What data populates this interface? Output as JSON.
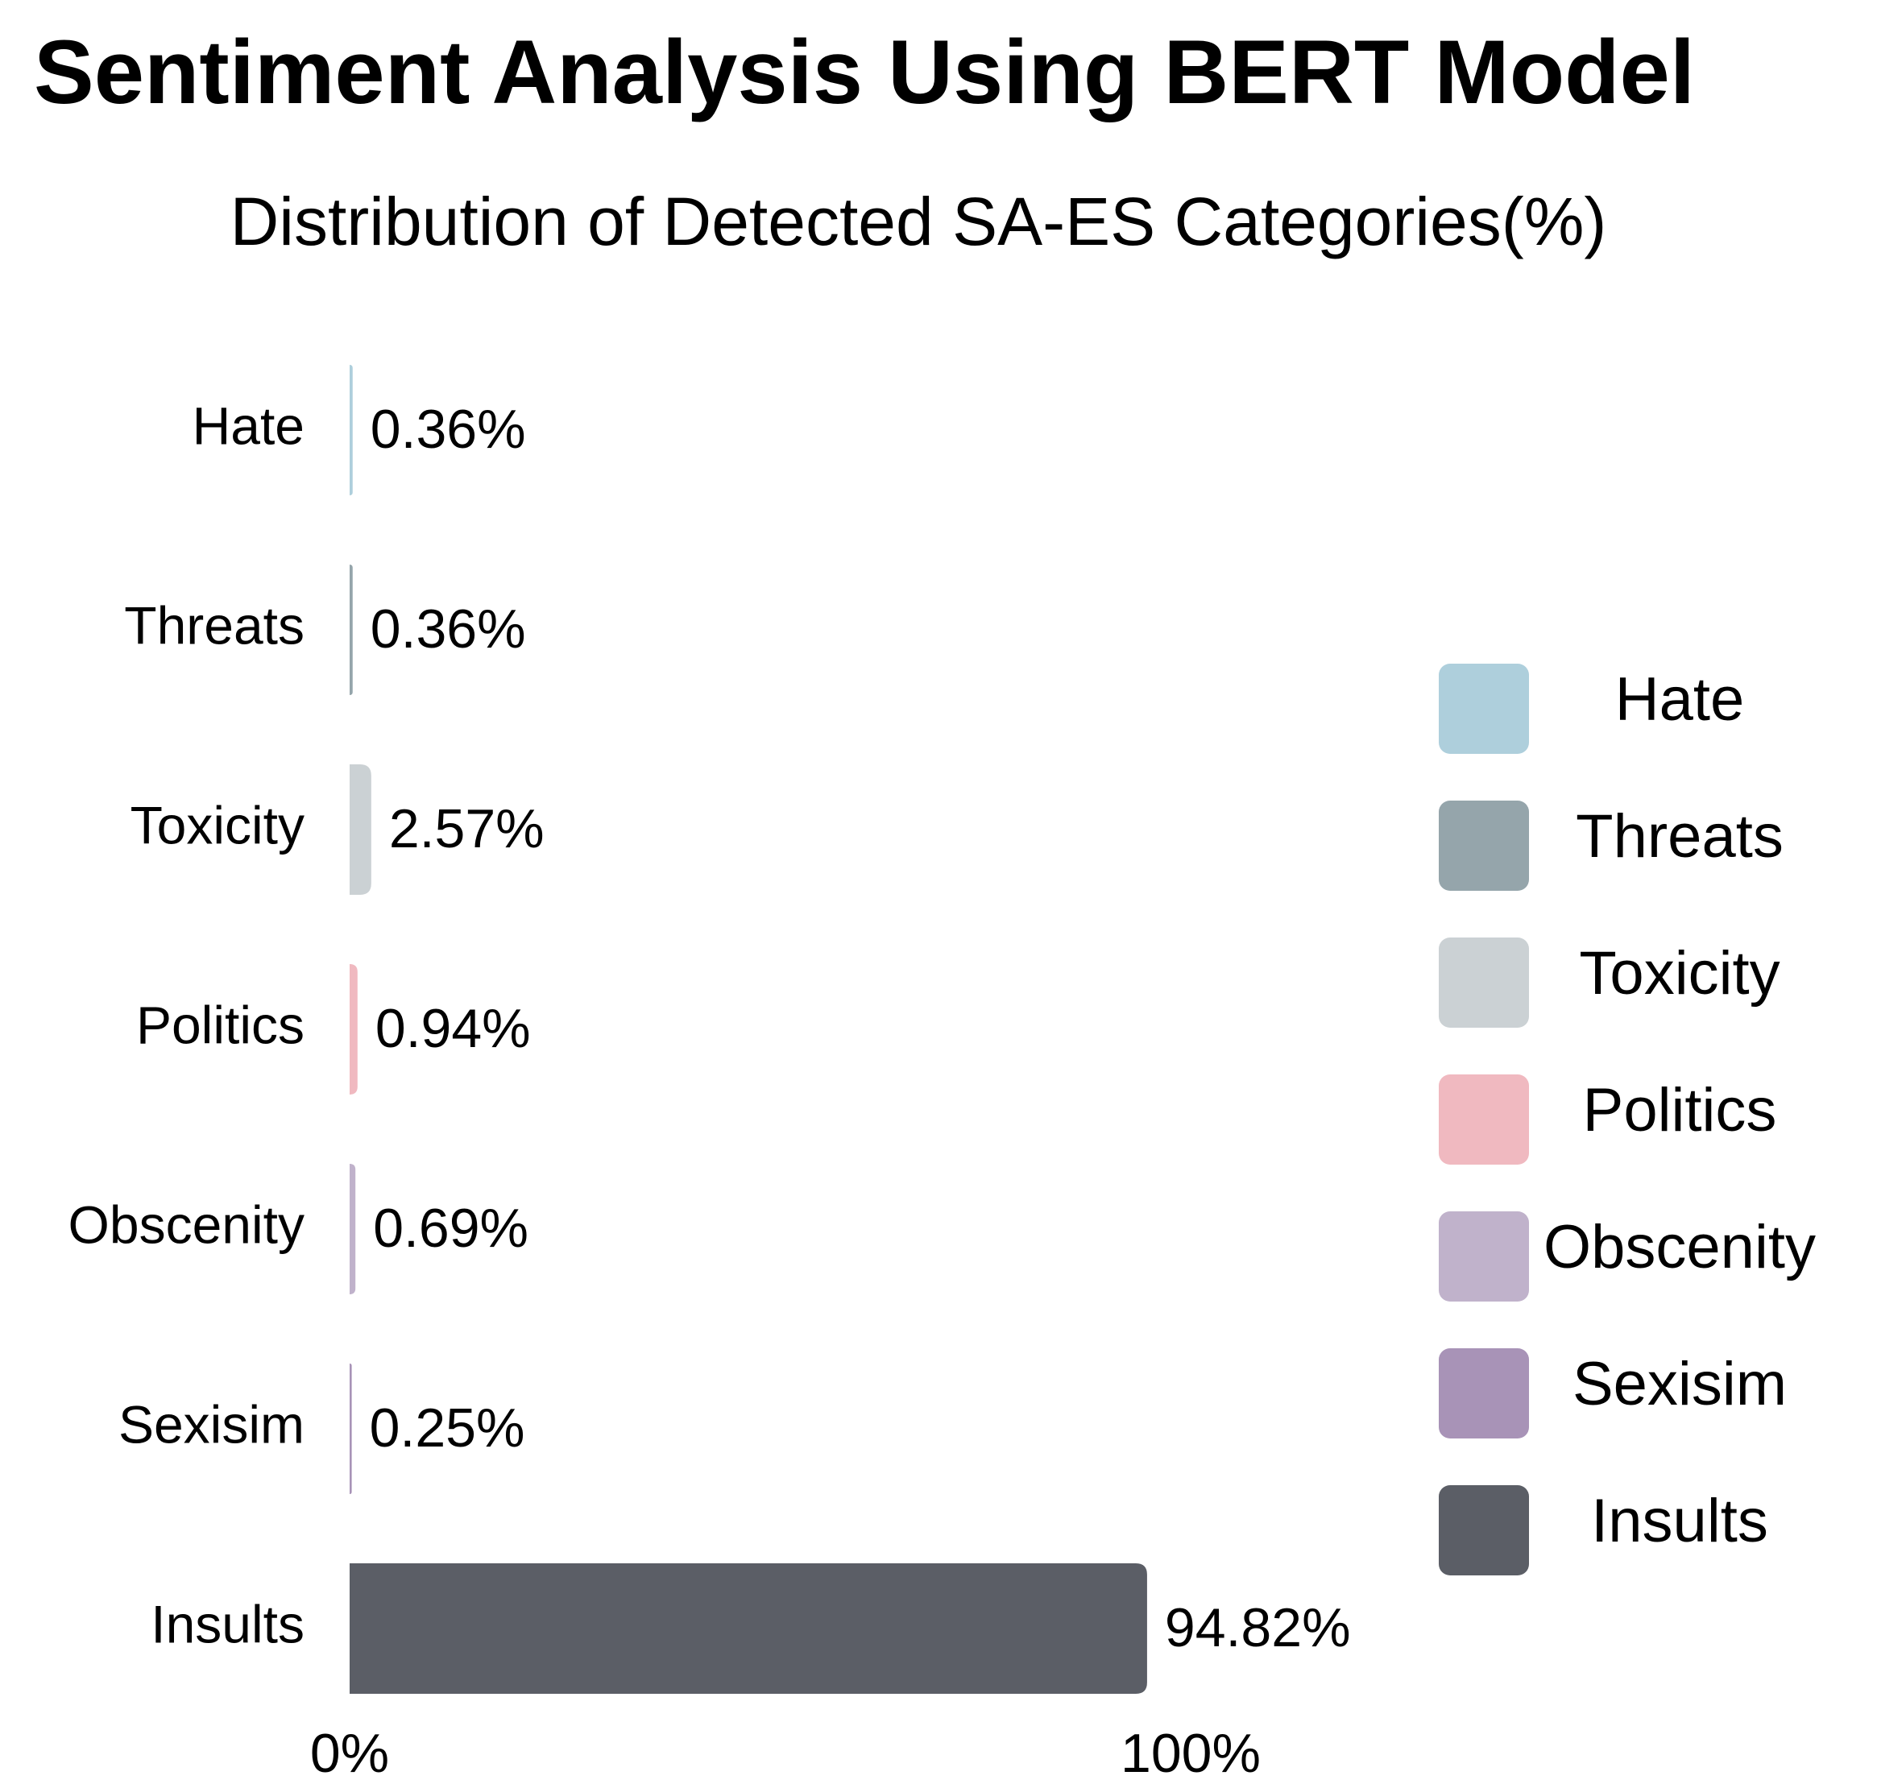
{
  "chart_data": {
    "type": "bar",
    "orientation": "horizontal",
    "title": "Sentiment Analysis Using BERT Model",
    "subtitle": "Distribution of Detected SA-ES Categories(%)",
    "categories": [
      "Hate",
      "Threats",
      "Toxicity",
      "Politics",
      "Obscenity",
      "Sexisim",
      "Insults"
    ],
    "values": [
      0.36,
      0.36,
      2.57,
      0.94,
      0.69,
      0.25,
      94.82
    ],
    "value_labels": [
      "0.36%",
      "0.36%",
      "2.57%",
      "0.94%",
      "0.69%",
      "0.25%",
      "94.82%"
    ],
    "colors": [
      "#aecfdc",
      "#95a5ab",
      "#cbd1d4",
      "#f0b9c0",
      "#c0b2cb",
      "#a893b7",
      "#5b5e66"
    ],
    "xlim": [
      0,
      100
    ],
    "x_ticks": [
      {
        "value": 0,
        "label": "0%"
      },
      {
        "value": 100,
        "label": "100%"
      }
    ],
    "xlabel": "",
    "ylabel": "",
    "grid": false,
    "legend": {
      "position": "right",
      "entries": [
        "Hate",
        "Threats",
        "Toxicity",
        "Politics",
        "Obscenity",
        "Sexisim",
        "Insults"
      ]
    }
  }
}
